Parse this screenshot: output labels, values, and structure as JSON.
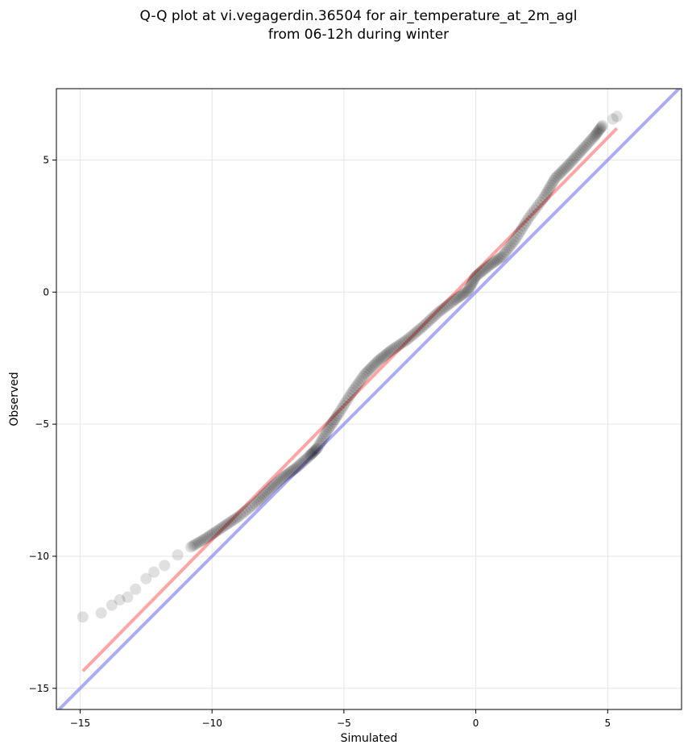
{
  "chart_data": {
    "type": "scatter",
    "title_line1": "Q-Q plot at vi.vegagerdin.36504 for air_temperature_at_2m_agl",
    "title_line2": "from 06-12h during winter",
    "xlabel": "Simulated",
    "ylabel": "Observed",
    "xlim": [
      -15.9,
      7.8
    ],
    "ylim": [
      -15.8,
      7.7
    ],
    "xticks": [
      -15,
      -10,
      -5,
      0,
      5
    ],
    "yticks": [
      -15,
      -10,
      -5,
      0,
      5
    ],
    "xtick_labels": [
      "−15",
      "−10",
      "−5",
      "0",
      "5"
    ],
    "ytick_labels": [
      "−15",
      "−10",
      "−5",
      "0",
      "5"
    ],
    "grid": true,
    "colors": {
      "points": "#000000",
      "fit_line": "#ff7f7f",
      "identity_line": "#8080ee"
    },
    "identity_line": {
      "x": [
        -15.9,
        7.8
      ],
      "y": [
        -15.9,
        7.8
      ]
    },
    "fit_line": {
      "x": [
        -14.9,
        5.35
      ],
      "y": [
        -14.35,
        6.2
      ]
    },
    "quantile_curve": [
      [
        -14.9,
        -12.3
      ],
      [
        -14.2,
        -12.15
      ],
      [
        -13.8,
        -11.85
      ],
      [
        -13.5,
        -11.65
      ],
      [
        -13.2,
        -11.55
      ],
      [
        -12.9,
        -11.25
      ],
      [
        -12.5,
        -10.85
      ],
      [
        -12.2,
        -10.6
      ],
      [
        -11.8,
        -10.35
      ],
      [
        -11.3,
        -9.95
      ],
      [
        -10.8,
        -9.65
      ],
      [
        -10.2,
        -9.3
      ],
      [
        -9.6,
        -8.9
      ],
      [
        -9.0,
        -8.5
      ],
      [
        -8.3,
        -7.95
      ],
      [
        -7.8,
        -7.45
      ],
      [
        -7.3,
        -7.0
      ],
      [
        -6.8,
        -6.65
      ],
      [
        -6.3,
        -6.2
      ],
      [
        -6.0,
        -5.9
      ],
      [
        -5.6,
        -5.2
      ],
      [
        -5.2,
        -4.6
      ],
      [
        -4.7,
        -3.8
      ],
      [
        -4.2,
        -3.1
      ],
      [
        -3.7,
        -2.6
      ],
      [
        -3.2,
        -2.2
      ],
      [
        -2.6,
        -1.8
      ],
      [
        -2.0,
        -1.3
      ],
      [
        -1.4,
        -0.75
      ],
      [
        -0.8,
        -0.3
      ],
      [
        -0.3,
        0.05
      ],
      [
        0.0,
        0.6
      ],
      [
        0.5,
        1.0
      ],
      [
        1.0,
        1.35
      ],
      [
        1.5,
        2.0
      ],
      [
        2.0,
        2.8
      ],
      [
        2.6,
        3.6
      ],
      [
        3.0,
        4.3
      ],
      [
        3.5,
        4.8
      ],
      [
        4.0,
        5.35
      ],
      [
        4.5,
        5.9
      ],
      [
        4.8,
        6.3
      ],
      [
        5.2,
        6.55
      ],
      [
        5.35,
        6.65
      ]
    ]
  }
}
